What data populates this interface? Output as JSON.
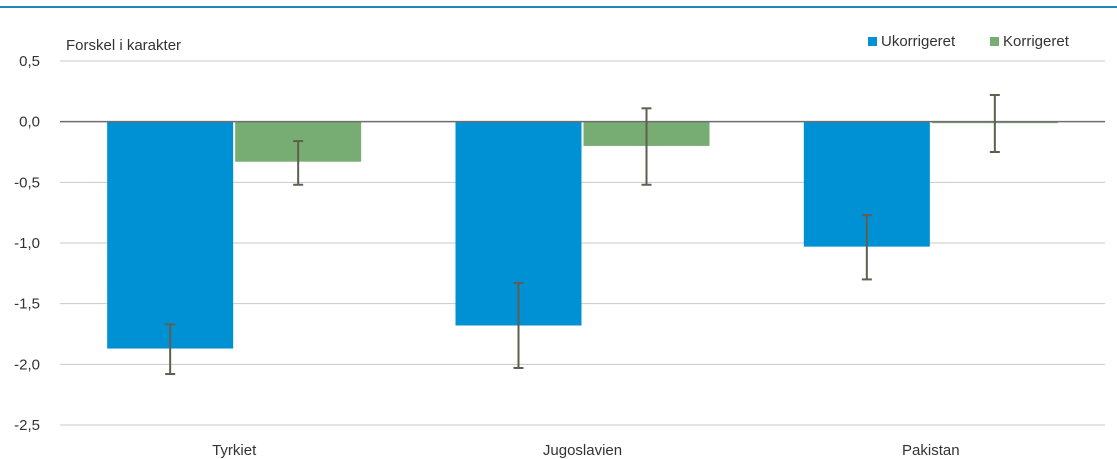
{
  "chart_data": {
    "type": "bar",
    "ylabel": "Forskel i karakter",
    "categories": [
      "Tyrkiet",
      "Jugoslavien",
      "Pakistan"
    ],
    "ylim": [
      -2.5,
      0.5
    ],
    "yticks": [
      0.5,
      0.0,
      -0.5,
      -1.0,
      -1.5,
      -2.0,
      -2.5
    ],
    "ytick_labels": [
      "0,5",
      "0,0",
      "-0,5",
      "-1,0",
      "-1,5",
      "-2,0",
      "-2,5"
    ],
    "grid": true,
    "legend_position": "top-right",
    "series": [
      {
        "name": "Ukorrigeret",
        "color": "#0091D4",
        "values": [
          -1.87,
          -1.68,
          -1.03
        ],
        "error_low": [
          -2.08,
          -2.03,
          -1.3
        ],
        "error_high": [
          -1.67,
          -1.33,
          -0.77
        ]
      },
      {
        "name": "Korrigeret",
        "color": "#77AD72",
        "values": [
          -0.33,
          -0.2,
          -0.01
        ],
        "error_low": [
          -0.52,
          -0.52,
          -0.25
        ],
        "error_high": [
          -0.16,
          0.11,
          0.22
        ]
      }
    ]
  },
  "colors": {
    "frame": "#1E88B8",
    "grid": "#C8C8C8",
    "zero_line": "#6E6E6E",
    "error_bar": "#5F5F4F"
  }
}
